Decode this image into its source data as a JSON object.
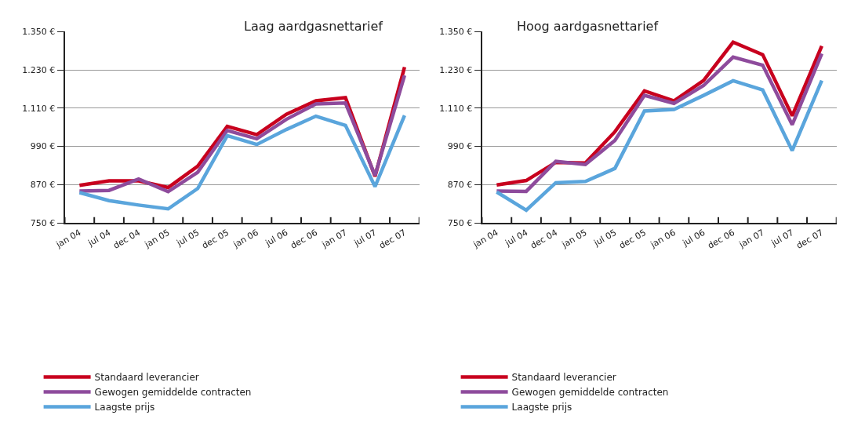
{
  "chart_data": [
    {
      "type": "line",
      "title": "Laag aardgasnettarief",
      "categories": [
        "jan 04",
        "jul 04",
        "dec 04",
        "jan 05",
        "jul 05",
        "dec 05",
        "jan 06",
        "jul 06",
        "dec 06",
        "jan 07",
        "jul 07",
        "dec 07"
      ],
      "ylim": [
        750,
        1350
      ],
      "yticks": [
        {
          "value": 750,
          "label": "750 €"
        },
        {
          "value": 870,
          "label": "870 €"
        },
        {
          "value": 990,
          "label": "990 €"
        },
        {
          "value": 1110,
          "label": "1.110 €"
        },
        {
          "value": 1230,
          "label": "1.230 €"
        },
        {
          "value": 1350,
          "label": "1.350 €"
        }
      ],
      "grid": "y",
      "legend": "bottom",
      "marker": "none",
      "line_style": "solid",
      "series": [
        {
          "name": "Standaard leverancier",
          "color": "#c8001e",
          "values": [
            868,
            882,
            882,
            861,
            928,
            1053,
            1027,
            1091,
            1133,
            1143,
            896,
            1239
          ]
        },
        {
          "name": "Gewogen gemiddelde contracten",
          "color": "#8e4b9c",
          "values": [
            850,
            852,
            888,
            848,
            909,
            1040,
            1014,
            1075,
            1123,
            1126,
            899,
            1213
          ]
        },
        {
          "name": "Laagste prijs",
          "color": "#5aa5dc",
          "values": [
            845,
            820,
            806,
            794,
            858,
            1024,
            996,
            1043,
            1085,
            1056,
            864,
            1087
          ]
        }
      ]
    },
    {
      "type": "line",
      "title": "Hoog aardgasnettarief",
      "categories": [
        "jan 04",
        "jul 04",
        "dec 04",
        "jan 05",
        "jul 05",
        "dec 05",
        "jan 06",
        "jul 06",
        "dec 06",
        "jan 07",
        "jul 07",
        "dec 07"
      ],
      "ylim": [
        750,
        1350
      ],
      "yticks": [
        {
          "value": 750,
          "label": "750 €"
        },
        {
          "value": 870,
          "label": "870 €"
        },
        {
          "value": 990,
          "label": "990 €"
        },
        {
          "value": 1110,
          "label": "1.110 €"
        },
        {
          "value": 1230,
          "label": "1.230 €"
        },
        {
          "value": 1350,
          "label": "1.350 €"
        }
      ],
      "grid": "y",
      "legend": "bottom",
      "marker": "none",
      "line_style": "solid",
      "series": [
        {
          "name": "Standaard leverancier",
          "color": "#c8001e",
          "values": [
            869,
            883,
            940,
            938,
            1036,
            1164,
            1133,
            1197,
            1317,
            1278,
            1086,
            1305
          ]
        },
        {
          "name": "Gewogen gemiddelde contracten",
          "color": "#8e4b9c",
          "values": [
            850,
            849,
            943,
            933,
            1009,
            1150,
            1125,
            1181,
            1270,
            1245,
            1058,
            1281
          ]
        },
        {
          "name": "Laagste prijs",
          "color": "#5aa5dc",
          "values": [
            847,
            790,
            876,
            880,
            921,
            1101,
            1106,
            1150,
            1196,
            1167,
            977,
            1197
          ]
        }
      ]
    }
  ]
}
